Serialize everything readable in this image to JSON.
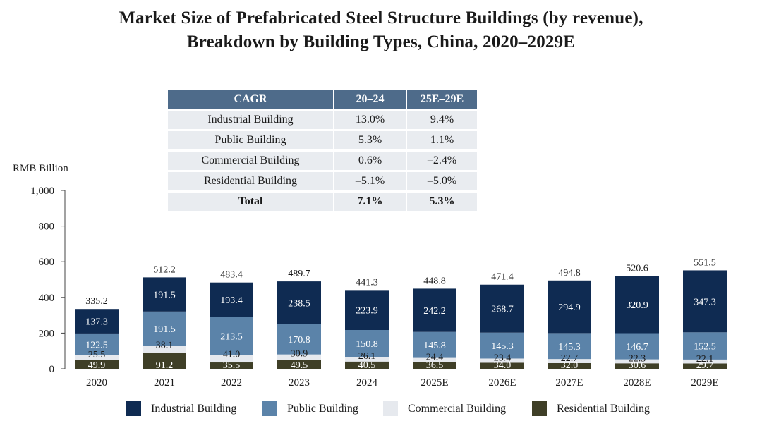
{
  "title": {
    "line1": "Market Size of Prefabricated Steel Structure Buildings (by revenue),",
    "line2": "Breakdown by Building Types, China, 2020–2029E"
  },
  "cagr_table": {
    "headers": [
      "CAGR",
      "20–24",
      "25E–29E"
    ],
    "rows": [
      {
        "label": "Industrial Building",
        "v1": "13.0%",
        "v2": "9.4%"
      },
      {
        "label": "Public Building",
        "v1": "5.3%",
        "v2": "1.1%"
      },
      {
        "label": "Commercial Building",
        "v1": "0.6%",
        "v2": "–2.4%"
      },
      {
        "label": "Residential Building",
        "v1": "–5.1%",
        "v2": "–5.0%"
      },
      {
        "label": "Total",
        "v1": "7.1%",
        "v2": "5.3%"
      }
    ]
  },
  "chart_data": {
    "type": "bar",
    "stacked": true,
    "ylabel": "RMB Billion",
    "ylim": [
      0,
      1000
    ],
    "yticks": [
      "0",
      "200",
      "400",
      "600",
      "800",
      "1,000"
    ],
    "categories": [
      "2020",
      "2021",
      "2022",
      "2023",
      "2024",
      "2025E",
      "2026E",
      "2027E",
      "2028E",
      "2029E"
    ],
    "totals": [
      "335.2",
      "512.2",
      "483.4",
      "489.7",
      "441.3",
      "448.8",
      "471.4",
      "494.8",
      "520.6",
      "551.5"
    ],
    "series": [
      {
        "name": "Residential Building",
        "color": "#3f3f27",
        "label_color": "#ffffff",
        "values": [
          "49.9",
          "91.2",
          "35.5",
          "49.5",
          "40.5",
          "36.5",
          "34.0",
          "32.0",
          "30.6",
          "29.7"
        ]
      },
      {
        "name": "Commercial Building",
        "color": "#e6e9ee",
        "label_color": "#1a1a1a",
        "values": [
          "25.5",
          "38.1",
          "41.0",
          "30.9",
          "26.1",
          "24.4",
          "23.4",
          "22.7",
          "22.3",
          "22.1"
        ]
      },
      {
        "name": "Public Building",
        "color": "#5b83a9",
        "label_color": "#ffffff",
        "values": [
          "122.5",
          "191.5",
          "213.5",
          "170.8",
          "150.8",
          "145.8",
          "145.3",
          "145.3",
          "146.7",
          "152.5"
        ]
      },
      {
        "name": "Industrial Building",
        "color": "#0f2b52",
        "label_color": "#ffffff",
        "values": [
          "137.3",
          "191.5",
          "193.4",
          "238.5",
          "223.9",
          "242.2",
          "268.7",
          "294.9",
          "320.9",
          "347.3"
        ]
      }
    ],
    "legend": [
      "Industrial Building",
      "Public Building",
      "Commercial Building",
      "Residential Building"
    ],
    "legend_position": "bottom"
  }
}
